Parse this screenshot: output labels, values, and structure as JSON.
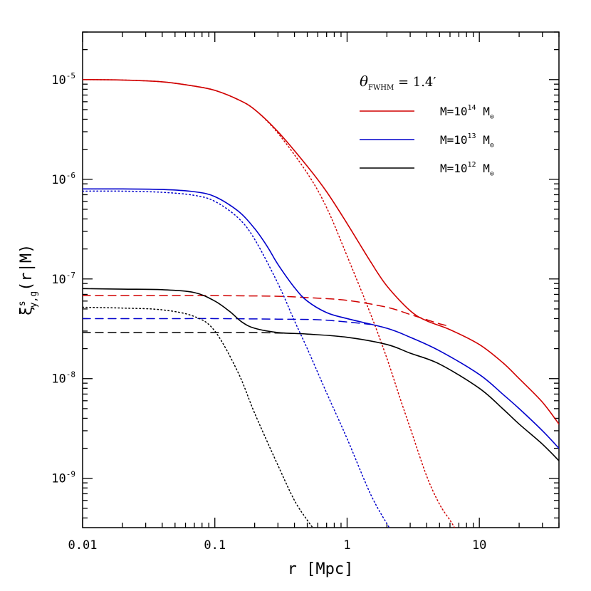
{
  "chart_data": {
    "type": "line",
    "xlabel": "r [Mpc]",
    "ylabel": {
      "base": "ξ",
      "sup": "s",
      "sub": "y,g",
      "arg": "(r|M)"
    },
    "xscale": "log",
    "yscale": "log",
    "xlim": [
      0.01,
      40
    ],
    "ylim": [
      3.2e-10,
      3e-05
    ],
    "xticks": [
      {
        "value": 0.01,
        "label": "0.01"
      },
      {
        "value": 0.1,
        "label": "0.1"
      },
      {
        "value": 1,
        "label": "1"
      },
      {
        "value": 10,
        "label": "10"
      }
    ],
    "yticks": [
      {
        "value": 1e-09,
        "base": "10",
        "exp": "-9"
      },
      {
        "value": 1e-08,
        "base": "10",
        "exp": "-8"
      },
      {
        "value": 1e-07,
        "base": "10",
        "exp": "-7"
      },
      {
        "value": 1e-06,
        "base": "10",
        "exp": "-6"
      },
      {
        "value": 1e-05,
        "base": "10",
        "exp": "-5"
      }
    ],
    "legend": {
      "placement": "top-right",
      "title": {
        "symbol": "θ",
        "sub": "FWHM",
        "text": " = 1.4′"
      },
      "entries": [
        {
          "prefix": "M=10",
          "exp": "14",
          "unit": " M",
          "sub": "⊙",
          "color": "#d00000"
        },
        {
          "prefix": "M=10",
          "exp": "13",
          "unit": " M",
          "sub": "⊙",
          "color": "#0000cc"
        },
        {
          "prefix": "M=10",
          "exp": "12",
          "unit": " M",
          "sub": "⊙",
          "color": "#000000"
        }
      ]
    },
    "series": [
      {
        "color": "#d00000",
        "style": "solid",
        "x": [
          0.01,
          0.02,
          0.04,
          0.07,
          0.1,
          0.15,
          0.2,
          0.3,
          0.5,
          0.7,
          1,
          1.5,
          2,
          3,
          4,
          6,
          10,
          15,
          20,
          30,
          40
        ],
        "y": [
          1e-05,
          9.9e-06,
          9.5e-06,
          8.6e-06,
          7.8e-06,
          6.3e-06,
          5e-06,
          3e-06,
          1.35e-06,
          7.5e-07,
          3.6e-07,
          1.5e-07,
          8.5e-08,
          4.8e-08,
          3.8e-08,
          3.1e-08,
          2.2e-08,
          1.45e-08,
          1e-08,
          5.8e-09,
          3.5e-09
        ]
      },
      {
        "color": "#d00000",
        "style": "dotted",
        "x": [
          0.01,
          0.02,
          0.04,
          0.07,
          0.1,
          0.15,
          0.2,
          0.3,
          0.5,
          0.7,
          1,
          1.5,
          2,
          2.5,
          3,
          4,
          5,
          6,
          6.5
        ],
        "y": [
          1e-05,
          9.9e-06,
          9.5e-06,
          8.6e-06,
          7.8e-06,
          6.3e-06,
          5e-06,
          2.9e-06,
          1.15e-06,
          5.2e-07,
          1.7e-07,
          4.5e-08,
          1.6e-08,
          6.5e-09,
          3.2e-09,
          1.05e-09,
          5.5e-10,
          3.8e-10,
          3.2e-10
        ]
      },
      {
        "color": "#d00000",
        "style": "dashed",
        "x": [
          0.01,
          0.05,
          0.1,
          0.3,
          0.5,
          1,
          2,
          3,
          4,
          5,
          6
        ],
        "y": [
          6.8e-08,
          6.8e-08,
          6.8e-08,
          6.7e-08,
          6.5e-08,
          6.1e-08,
          5.2e-08,
          4.4e-08,
          3.9e-08,
          3.55e-08,
          3.35e-08
        ]
      },
      {
        "color": "#0000cc",
        "style": "solid",
        "x": [
          0.01,
          0.02,
          0.04,
          0.07,
          0.1,
          0.15,
          0.2,
          0.25,
          0.3,
          0.4,
          0.5,
          0.7,
          1,
          2,
          3,
          5,
          10,
          15,
          20,
          30,
          40
        ],
        "y": [
          8e-07,
          8e-07,
          7.9e-07,
          7.5e-07,
          6.7e-07,
          4.8e-07,
          3.2e-07,
          2.1e-07,
          1.4e-07,
          8.2e-08,
          6e-08,
          4.6e-08,
          4e-08,
          3.2e-08,
          2.6e-08,
          1.9e-08,
          1.1e-08,
          7e-09,
          5e-09,
          3e-09,
          2e-09
        ]
      },
      {
        "color": "#0000cc",
        "style": "dotted",
        "x": [
          0.01,
          0.02,
          0.04,
          0.07,
          0.1,
          0.15,
          0.2,
          0.3,
          0.4,
          0.5,
          0.7,
          1,
          1.5,
          2,
          2.1
        ],
        "y": [
          7.6e-07,
          7.6e-07,
          7.4e-07,
          6.9e-07,
          6e-07,
          4.1e-07,
          2.5e-07,
          9e-08,
          3.8e-08,
          2e-08,
          7.2e-09,
          2.5e-09,
          7e-10,
          3.5e-10,
          3.2e-10
        ]
      },
      {
        "color": "#0000cc",
        "style": "dashed",
        "x": [
          0.01,
          0.05,
          0.1,
          0.3,
          0.6,
          1,
          1.5
        ],
        "y": [
          4e-08,
          4e-08,
          4e-08,
          3.95e-08,
          3.9e-08,
          3.7e-08,
          3.5e-08
        ]
      },
      {
        "color": "#000000",
        "style": "solid",
        "x": [
          0.01,
          0.02,
          0.04,
          0.07,
          0.1,
          0.13,
          0.16,
          0.2,
          0.3,
          0.5,
          1,
          2,
          3,
          5,
          10,
          15,
          20,
          30,
          40
        ],
        "y": [
          8e-08,
          7.9e-08,
          7.8e-08,
          7.3e-08,
          6e-08,
          4.7e-08,
          3.7e-08,
          3.2e-08,
          2.9e-08,
          2.8e-08,
          2.6e-08,
          2.2e-08,
          1.8e-08,
          1.4e-08,
          8e-09,
          5e-09,
          3.5e-09,
          2.2e-09,
          1.5e-09
        ]
      },
      {
        "color": "#000000",
        "style": "dotted",
        "x": [
          0.01,
          0.02,
          0.04,
          0.07,
          0.1,
          0.15,
          0.2,
          0.3,
          0.4,
          0.5,
          0.55
        ],
        "y": [
          5.2e-08,
          5.1e-08,
          4.9e-08,
          4.2e-08,
          3e-08,
          1.15e-08,
          4.5e-09,
          1.35e-09,
          6e-10,
          3.8e-10,
          3.2e-10
        ]
      },
      {
        "color": "#000000",
        "style": "dashed",
        "x": [
          0.01,
          0.05,
          0.1,
          0.2,
          0.35
        ],
        "y": [
          2.9e-08,
          2.9e-08,
          2.9e-08,
          2.9e-08,
          2.85e-08
        ]
      }
    ]
  }
}
